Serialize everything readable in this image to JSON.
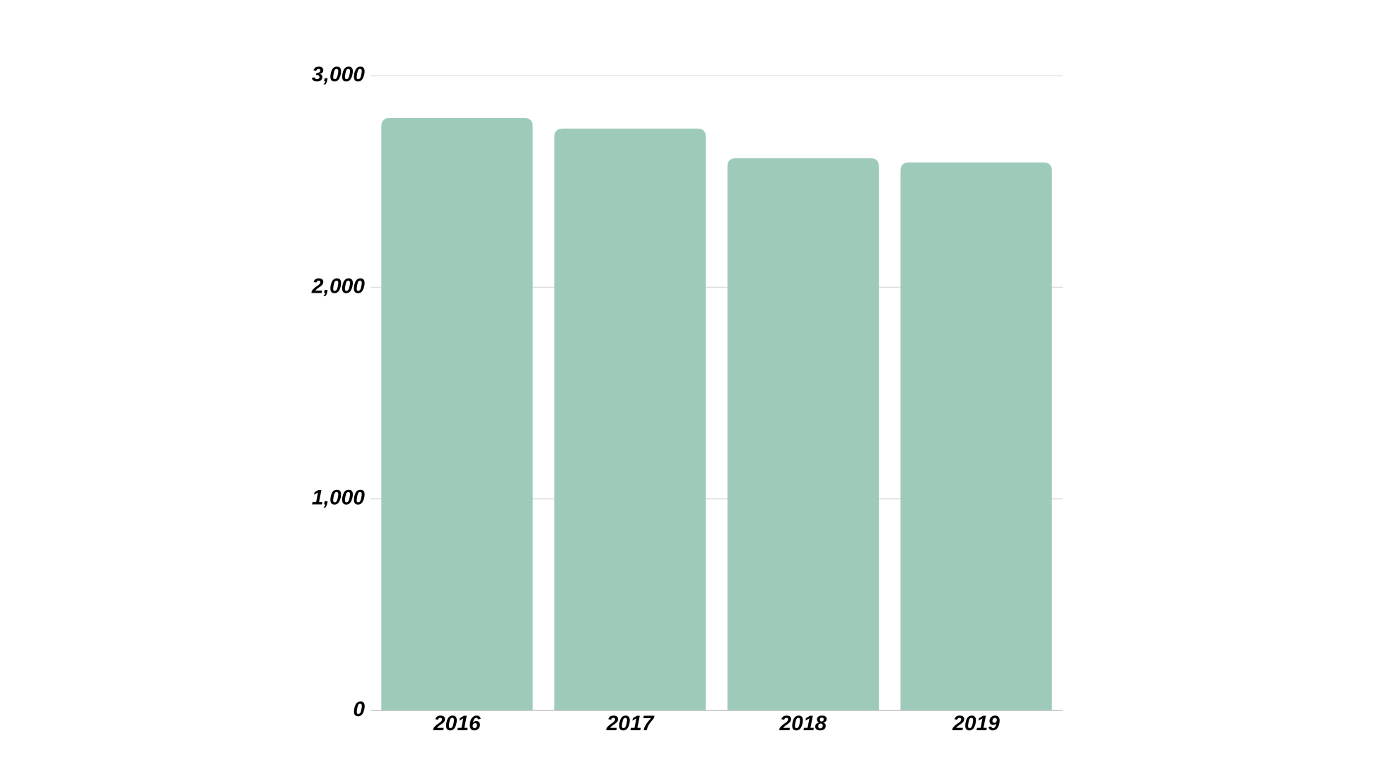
{
  "chart_data": {
    "type": "bar",
    "categories": [
      "2016",
      "2017",
      "2018",
      "2019"
    ],
    "values": [
      2800,
      2750,
      2610,
      2590
    ],
    "color": "#9ecbb9",
    "ylim": [
      0,
      3000
    ],
    "yticks": [
      0,
      {
        "value": 1000,
        "label": "1,000"
      },
      {
        "value": 2000,
        "label": "2,000"
      },
      {
        "value": 3000,
        "label": "3,000"
      }
    ],
    "grid": true
  }
}
